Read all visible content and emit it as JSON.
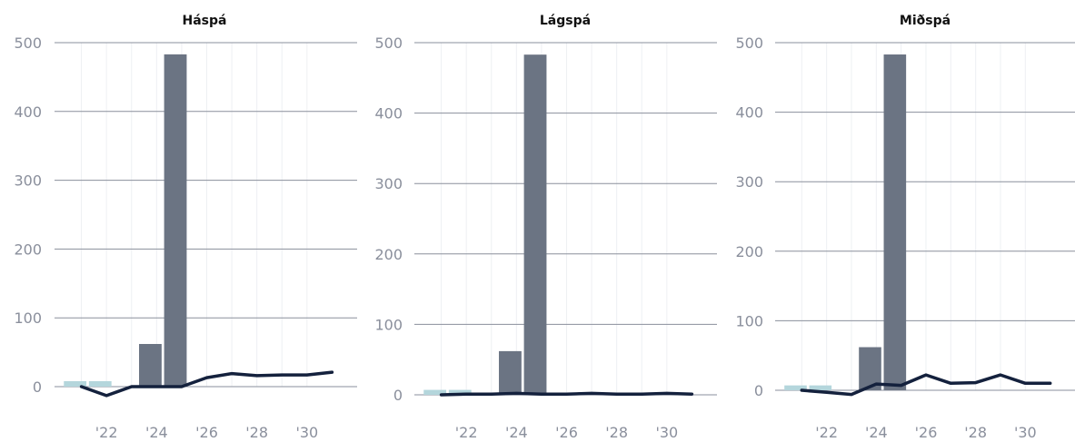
{
  "colors": {
    "gridline": "#8a8f9c",
    "minor_grid": "#eef0f3",
    "bar_dark": "#6b7483",
    "bar_light": "#b4d6dc",
    "line": "#14213d",
    "tick_text": "#8a8f9c"
  },
  "chart_data": [
    {
      "type": "bar+line",
      "title": "Háspá",
      "ylim": [
        -20,
        500
      ],
      "yticks": [
        0,
        100,
        200,
        300,
        400,
        500
      ],
      "xlim": [
        2020.0,
        2032.0
      ],
      "xticks": [
        2022,
        2024,
        2026,
        2028,
        2030
      ],
      "xtick_labels": [
        "'22",
        "'24",
        "'26",
        "'28",
        "'30"
      ],
      "bars_light": [
        {
          "x": 2020.75,
          "value": 8
        },
        {
          "x": 2021.75,
          "value": 8
        }
      ],
      "bars_dark": [
        {
          "x": 2023.75,
          "value": 62
        },
        {
          "x": 2024.75,
          "value": 483
        }
      ],
      "line": {
        "x": [
          2021,
          2022,
          2023,
          2024,
          2025,
          2026,
          2027,
          2028,
          2029,
          2030,
          2031
        ],
        "values": [
          0,
          -13,
          0,
          0,
          0,
          13,
          19,
          16,
          17,
          17,
          21
        ]
      }
    },
    {
      "type": "bar+line",
      "title": "Lágspá",
      "ylim": [
        -12,
        500
      ],
      "yticks": [
        0,
        100,
        200,
        300,
        400,
        500
      ],
      "xlim": [
        2020.0,
        2032.0
      ],
      "xticks": [
        2022,
        2024,
        2026,
        2028,
        2030
      ],
      "xtick_labels": [
        "'22",
        "'24",
        "'26",
        "'28",
        "'30"
      ],
      "bars_light": [
        {
          "x": 2020.75,
          "value": 7
        },
        {
          "x": 2021.75,
          "value": 7
        }
      ],
      "bars_dark": [
        {
          "x": 2023.75,
          "value": 62
        },
        {
          "x": 2024.75,
          "value": 483
        }
      ],
      "line": {
        "x": [
          2021,
          2022,
          2023,
          2024,
          2025,
          2026,
          2027,
          2028,
          2029,
          2030,
          2031
        ],
        "values": [
          0,
          1,
          1,
          2,
          1,
          1,
          2,
          1,
          1,
          2,
          1
        ]
      }
    },
    {
      "type": "bar+line",
      "title": "Miðspá",
      "ylim": [
        -12,
        500
      ],
      "yticks": [
        0,
        100,
        200,
        300,
        400,
        500
      ],
      "xlim": [
        2020.0,
        2032.0
      ],
      "xticks": [
        2022,
        2024,
        2026,
        2028,
        2030
      ],
      "xtick_labels": [
        "'22",
        "'24",
        "'26",
        "'28",
        "'30"
      ],
      "bars_light": [
        {
          "x": 2020.75,
          "value": 7
        },
        {
          "x": 2021.75,
          "value": 7
        }
      ],
      "bars_dark": [
        {
          "x": 2023.75,
          "value": 62
        },
        {
          "x": 2024.75,
          "value": 483
        }
      ],
      "line": {
        "x": [
          2021,
          2022,
          2023,
          2024,
          2025,
          2026,
          2027,
          2028,
          2029,
          2030,
          2031
        ],
        "values": [
          0,
          -3,
          -6,
          9,
          7,
          22,
          10,
          11,
          22,
          10,
          10
        ]
      }
    }
  ]
}
